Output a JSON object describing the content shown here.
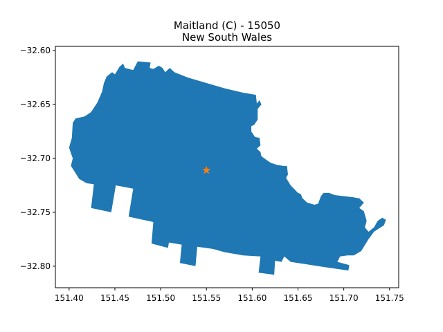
{
  "title": {
    "line1": "Maitland (C) - 15050",
    "line2": "New South Wales"
  },
  "colors": {
    "region_fill": "#1f77b4",
    "marker": "#ff7f0e",
    "axes": "#000000",
    "background": "#ffffff"
  },
  "chart_data": {
    "type": "map",
    "xlim": [
      151.385,
      151.76
    ],
    "ylim": [
      -32.82,
      -32.596
    ],
    "x_ticks": [
      {
        "value": 151.4,
        "label": "151.40"
      },
      {
        "value": 151.45,
        "label": "151.45"
      },
      {
        "value": 151.5,
        "label": "151.50"
      },
      {
        "value": 151.55,
        "label": "151.55"
      },
      {
        "value": 151.6,
        "label": "151.60"
      },
      {
        "value": 151.65,
        "label": "151.65"
      },
      {
        "value": 151.7,
        "label": "151.70"
      },
      {
        "value": 151.75,
        "label": "151.75"
      }
    ],
    "y_ticks": [
      {
        "value": -32.6,
        "label": "−32.60"
      },
      {
        "value": -32.65,
        "label": "−32.65"
      },
      {
        "value": -32.7,
        "label": "−32.70"
      },
      {
        "value": -32.75,
        "label": "−32.75"
      },
      {
        "value": -32.8,
        "label": "−32.80"
      }
    ],
    "marker": {
      "lon": 151.55,
      "lat": -32.711,
      "symbol": "star"
    },
    "region_outline": [
      [
        151.441,
        -32.624
      ],
      [
        151.447,
        -32.62
      ],
      [
        151.45,
        -32.622
      ],
      [
        151.455,
        -32.615
      ],
      [
        151.459,
        -32.612
      ],
      [
        151.461,
        -32.616
      ],
      [
        151.47,
        -32.618
      ],
      [
        151.475,
        -32.61
      ],
      [
        151.489,
        -32.611
      ],
      [
        151.488,
        -32.616
      ],
      [
        151.492,
        -32.617
      ],
      [
        151.498,
        -32.614
      ],
      [
        151.502,
        -32.616
      ],
      [
        151.505,
        -32.62
      ],
      [
        151.51,
        -32.616
      ],
      [
        151.515,
        -32.62
      ],
      [
        151.53,
        -32.625
      ],
      [
        151.55,
        -32.63
      ],
      [
        151.57,
        -32.635
      ],
      [
        151.59,
        -32.639
      ],
      [
        151.604,
        -32.641
      ],
      [
        151.605,
        -32.649
      ],
      [
        151.608,
        -32.646
      ],
      [
        151.61,
        -32.65
      ],
      [
        151.606,
        -32.654
      ],
      [
        151.606,
        -32.664
      ],
      [
        151.602,
        -32.669
      ],
      [
        151.599,
        -32.67
      ],
      [
        151.599,
        -32.675
      ],
      [
        151.603,
        -32.68
      ],
      [
        151.608,
        -32.681
      ],
      [
        151.609,
        -32.688
      ],
      [
        151.605,
        -32.691
      ],
      [
        151.609,
        -32.694
      ],
      [
        151.61,
        -32.698
      ],
      [
        151.615,
        -32.701
      ],
      [
        151.62,
        -32.704
      ],
      [
        151.627,
        -32.706
      ],
      [
        151.634,
        -32.707
      ],
      [
        151.638,
        -32.707
      ],
      [
        151.639,
        -32.715
      ],
      [
        151.637,
        -32.718
      ],
      [
        151.642,
        -32.725
      ],
      [
        151.65,
        -32.732
      ],
      [
        151.653,
        -32.733
      ],
      [
        151.655,
        -32.737
      ],
      [
        151.66,
        -32.741
      ],
      [
        151.668,
        -32.743
      ],
      [
        151.672,
        -32.742
      ],
      [
        151.675,
        -32.735
      ],
      [
        151.678,
        -32.732
      ],
      [
        151.684,
        -32.732
      ],
      [
        151.69,
        -32.734
      ],
      [
        151.7,
        -32.735
      ],
      [
        151.71,
        -32.736
      ],
      [
        151.717,
        -32.737
      ],
      [
        151.722,
        -32.741
      ],
      [
        151.717,
        -32.746
      ],
      [
        151.722,
        -32.749
      ],
      [
        151.725,
        -32.758
      ],
      [
        151.723,
        -32.764
      ],
      [
        151.727,
        -32.768
      ],
      [
        151.733,
        -32.764
      ],
      [
        151.737,
        -32.758
      ],
      [
        151.742,
        -32.755
      ],
      [
        151.746,
        -32.757
      ],
      [
        151.744,
        -32.762
      ],
      [
        151.733,
        -32.768
      ],
      [
        151.727,
        -32.775
      ],
      [
        151.719,
        -32.786
      ],
      [
        151.711,
        -32.79
      ],
      [
        151.704,
        -32.79
      ],
      [
        151.696,
        -32.791
      ],
      [
        151.693,
        -32.796
      ],
      [
        151.706,
        -32.799
      ],
      [
        151.705,
        -32.804
      ],
      [
        151.68,
        -32.801
      ],
      [
        151.65,
        -32.797
      ],
      [
        151.642,
        -32.796
      ],
      [
        151.635,
        -32.791
      ],
      [
        151.632,
        -32.796
      ],
      [
        151.625,
        -32.795
      ],
      [
        151.624,
        -32.808
      ],
      [
        151.607,
        -32.806
      ],
      [
        151.609,
        -32.791
      ],
      [
        151.59,
        -32.79
      ],
      [
        151.57,
        -32.787
      ],
      [
        151.557,
        -32.784
      ],
      [
        151.54,
        -32.782
      ],
      [
        151.538,
        -32.8
      ],
      [
        151.521,
        -32.797
      ],
      [
        151.523,
        -32.78
      ],
      [
        151.509,
        -32.778
      ],
      [
        151.508,
        -32.783
      ],
      [
        151.49,
        -32.779
      ],
      [
        151.492,
        -32.759
      ],
      [
        151.465,
        -32.754
      ],
      [
        151.47,
        -32.728
      ],
      [
        151.451,
        -32.725
      ],
      [
        151.446,
        -32.75
      ],
      [
        151.424,
        -32.746
      ],
      [
        151.427,
        -32.724
      ],
      [
        151.419,
        -32.723
      ],
      [
        151.411,
        -32.719
      ],
      [
        151.402,
        -32.707
      ],
      [
        151.404,
        -32.7
      ],
      [
        151.4,
        -32.69
      ],
      [
        151.403,
        -32.681
      ],
      [
        151.404,
        -32.667
      ],
      [
        151.407,
        -32.663
      ],
      [
        151.417,
        -32.661
      ],
      [
        151.424,
        -32.657
      ],
      [
        151.431,
        -32.648
      ],
      [
        151.436,
        -32.638
      ],
      [
        151.438,
        -32.63
      ]
    ]
  }
}
